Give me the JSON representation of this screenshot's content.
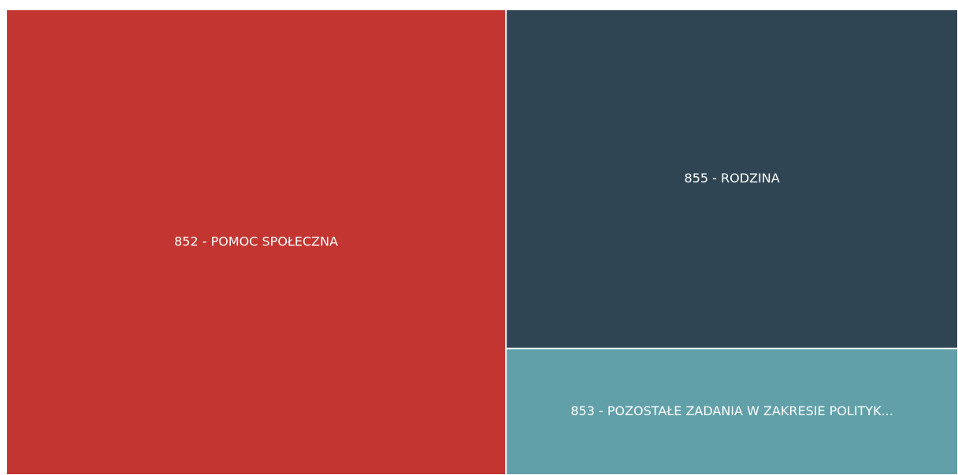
{
  "chart_data": {
    "type": "treemap",
    "categories": [
      "852 - POMOC SPOŁECZNA",
      "855 - RODZINA",
      "853 - POZOSTAŁE ZADANIA W ZAKRESIE POLITYK..."
    ],
    "values": [
      52.5,
      34.6,
      12.9
    ],
    "colors": [
      "#c23531",
      "#2f4554",
      "#61a0a8"
    ]
  }
}
